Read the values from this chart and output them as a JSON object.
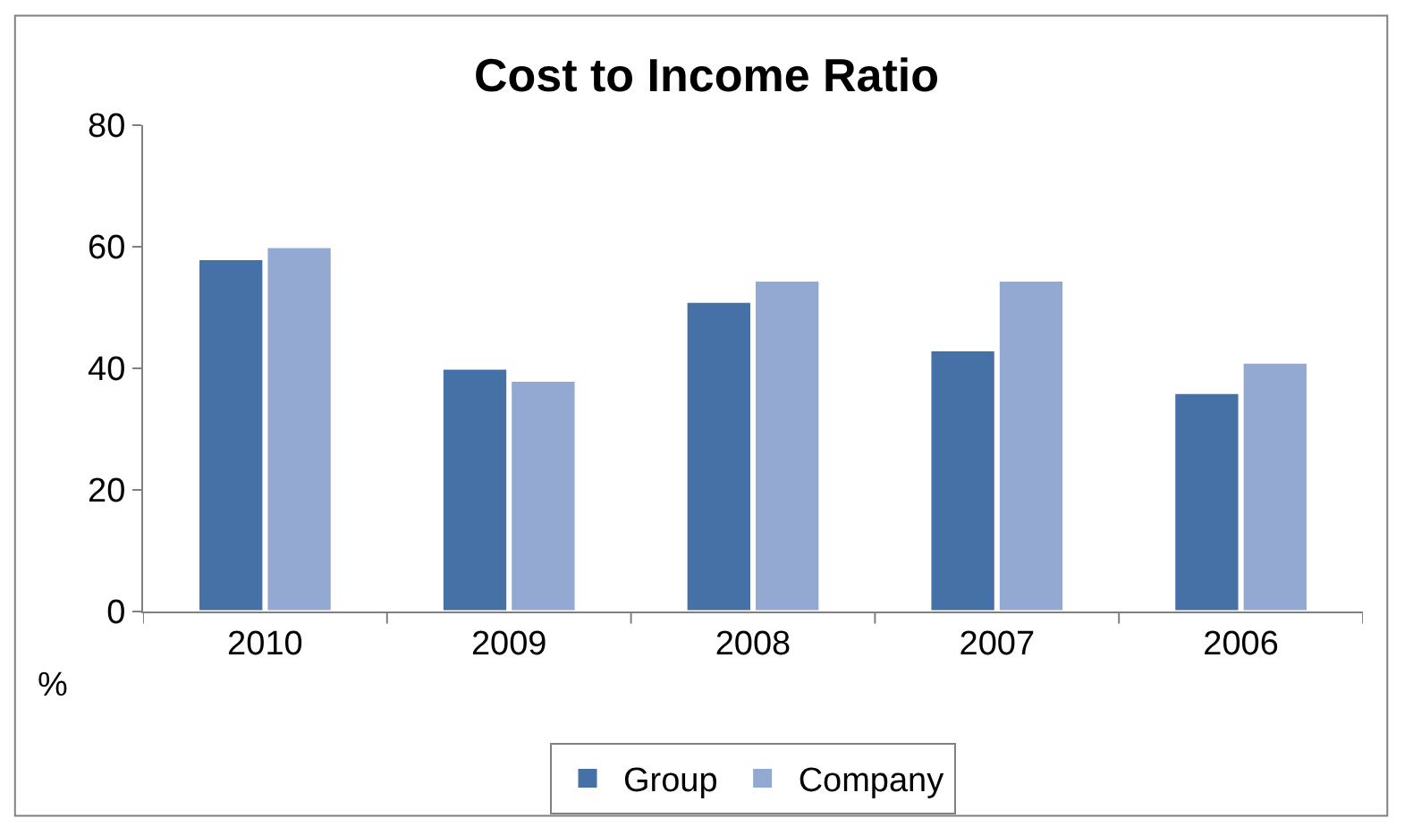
{
  "chart_data": {
    "type": "bar",
    "title": "Cost to Income Ratio",
    "ylabel": "%",
    "categories": [
      "2010",
      "2009",
      "2008",
      "2007",
      "2006"
    ],
    "series": [
      {
        "name": "Group",
        "color": "#4571a7",
        "values": [
          58,
          40,
          51,
          43,
          36
        ]
      },
      {
        "name": "Company",
        "color": "#94a9d1",
        "values": [
          60,
          38,
          54.5,
          54.5,
          41
        ]
      }
    ],
    "ylim": [
      0,
      80
    ],
    "yticks": [
      0,
      20,
      40,
      60,
      80
    ],
    "legend": "bottom"
  }
}
